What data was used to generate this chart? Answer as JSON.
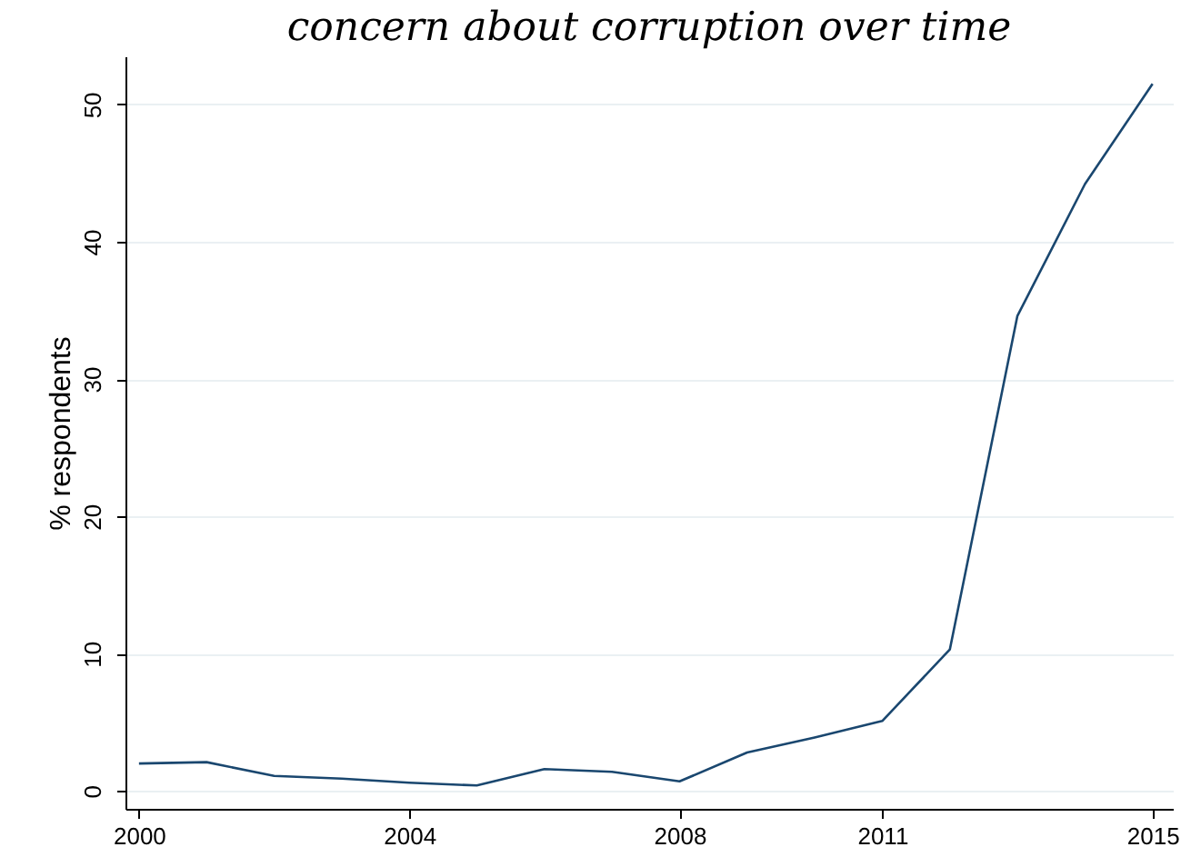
{
  "chart_data": {
    "type": "line",
    "title": "concern about corruption over time",
    "ylabel": "% respondents",
    "x": [
      2000,
      2001,
      2002,
      2003,
      2004,
      2005,
      2006,
      2007,
      2008,
      2009,
      2010,
      2011,
      2012,
      2013,
      2014,
      2015
    ],
    "series": [
      {
        "color": "#1a476f",
        "values": [
          2.0,
          2.1,
          1.1,
          0.9,
          0.6,
          0.4,
          1.6,
          1.4,
          0.7,
          2.8,
          3.9,
          5.1,
          10.3,
          34.6,
          44.2,
          51.5
        ]
      }
    ],
    "xlim": [
      1999.8,
      2015.3
    ],
    "xticks": [
      2000,
      2004,
      2008,
      2011,
      2015
    ],
    "ylim": [
      -1.3,
      53.5
    ],
    "yticks": [
      0,
      10,
      20,
      30,
      40,
      50
    ],
    "grid": "y"
  }
}
